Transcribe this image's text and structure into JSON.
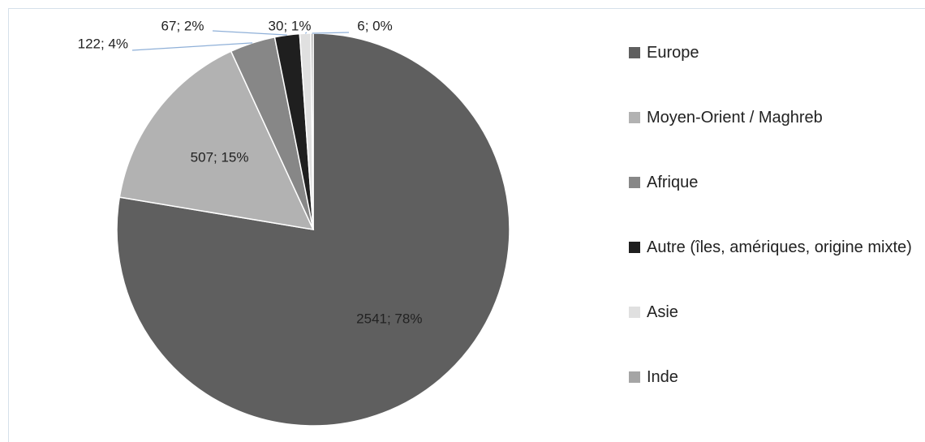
{
  "chart_data": {
    "type": "pie",
    "categories": [
      "Europe",
      "Moyen-Orient / Maghreb",
      "Afrique",
      "Autre (îles, amériques, origine mixte)",
      "Asie",
      "Inde"
    ],
    "values": [
      2541,
      507,
      122,
      67,
      30,
      6
    ],
    "value_labels": [
      "2541; 78%",
      "507; 15%",
      "122; 4%",
      "67; 2%",
      "30; 1%",
      "6; 0%"
    ],
    "colors": [
      "#5f5f5f",
      "#b2b2b2",
      "#878787",
      "#1f1f1f",
      "#e0e0e0",
      "#a5a5a5"
    ],
    "legend": "right"
  }
}
